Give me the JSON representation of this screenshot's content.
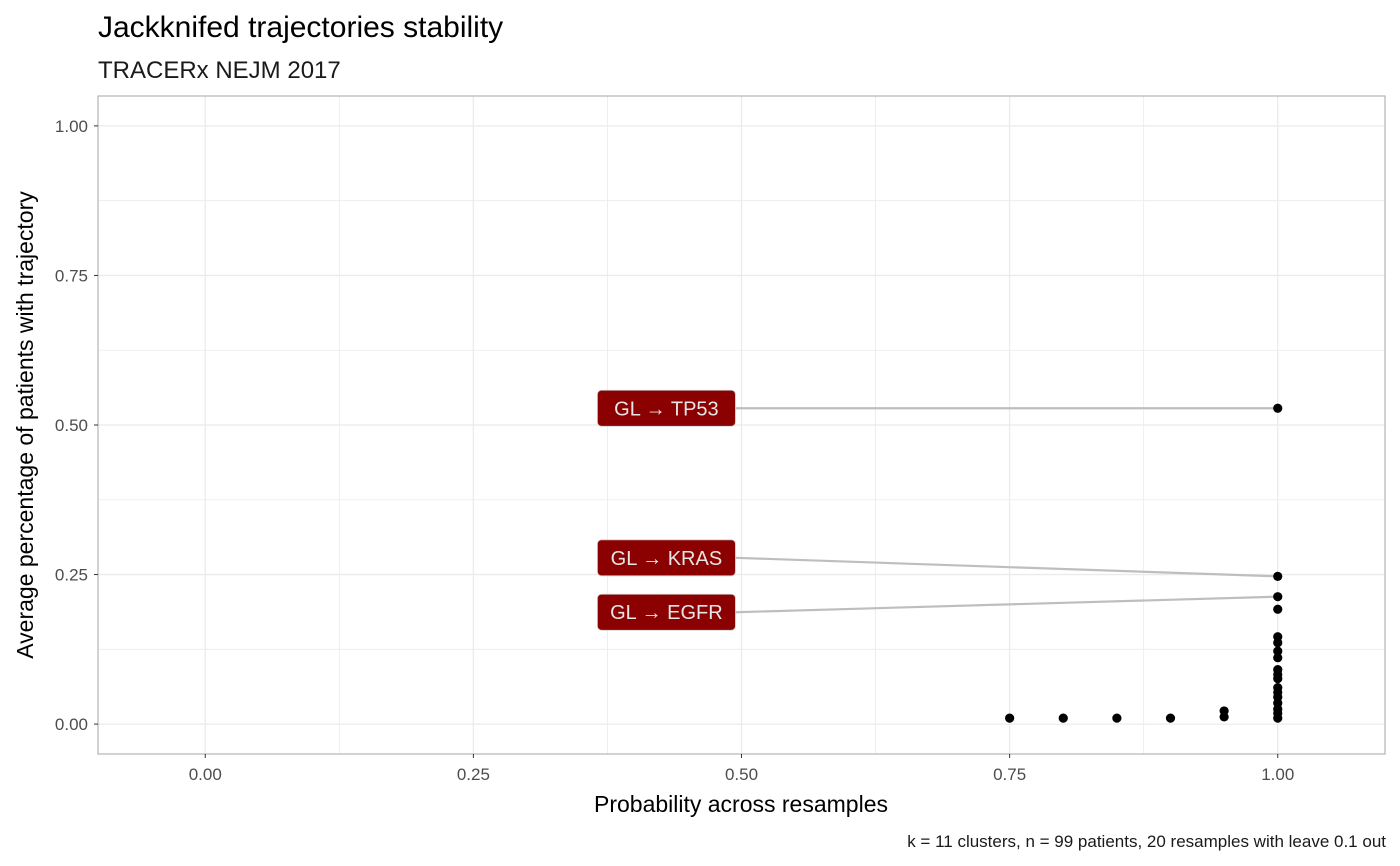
{
  "chart_data": {
    "type": "scatter",
    "title": "Jackknifed trajectories stability",
    "subtitle": "TRACERx NEJM 2017",
    "xlabel": "Probability across resamples",
    "ylabel": "Average percentage of patients with trajectory",
    "caption": "k = 11 clusters, n = 99 patients, 20 resamples with leave 0.1 out",
    "xlim": [
      -0.1,
      1.1
    ],
    "ylim": [
      -0.05,
      1.05
    ],
    "x_ticks": [
      "0.00",
      "0.25",
      "0.50",
      "0.75",
      "1.00"
    ],
    "y_ticks": [
      "0.00",
      "0.25",
      "0.50",
      "0.75",
      "1.00"
    ],
    "grid": true,
    "points": [
      {
        "x": 1.0,
        "y": 0.528
      },
      {
        "x": 1.0,
        "y": 0.247
      },
      {
        "x": 1.0,
        "y": 0.213
      },
      {
        "x": 1.0,
        "y": 0.192
      },
      {
        "x": 1.0,
        "y": 0.146
      },
      {
        "x": 1.0,
        "y": 0.136
      },
      {
        "x": 1.0,
        "y": 0.122
      },
      {
        "x": 1.0,
        "y": 0.111
      },
      {
        "x": 1.0,
        "y": 0.091
      },
      {
        "x": 1.0,
        "y": 0.083
      },
      {
        "x": 1.0,
        "y": 0.076
      },
      {
        "x": 1.0,
        "y": 0.061
      },
      {
        "x": 1.0,
        "y": 0.053
      },
      {
        "x": 1.0,
        "y": 0.045
      },
      {
        "x": 1.0,
        "y": 0.035
      },
      {
        "x": 1.0,
        "y": 0.025
      },
      {
        "x": 1.0,
        "y": 0.018
      },
      {
        "x": 1.0,
        "y": 0.01
      },
      {
        "x": 0.95,
        "y": 0.022
      },
      {
        "x": 0.95,
        "y": 0.012
      },
      {
        "x": 0.9,
        "y": 0.01
      },
      {
        "x": 0.85,
        "y": 0.01
      },
      {
        "x": 0.8,
        "y": 0.01
      },
      {
        "x": 0.75,
        "y": 0.01
      }
    ],
    "labels": [
      {
        "text": "GL → TP53",
        "x": 1.0,
        "y": 0.528,
        "label_x": 0.43,
        "label_y": 0.528
      },
      {
        "text": "GL → KRAS",
        "x": 1.0,
        "y": 0.247,
        "label_x": 0.43,
        "label_y": 0.278
      },
      {
        "text": "GL → EGFR",
        "x": 1.0,
        "y": 0.213,
        "label_x": 0.43,
        "label_y": 0.187
      }
    ],
    "colors": {
      "point": "#000000",
      "label_fill": "#8b0000",
      "label_text": "#e6e6e6",
      "segment": "#bebebe",
      "grid": "#ebebeb",
      "panel_border": "#b3b3b3"
    }
  }
}
